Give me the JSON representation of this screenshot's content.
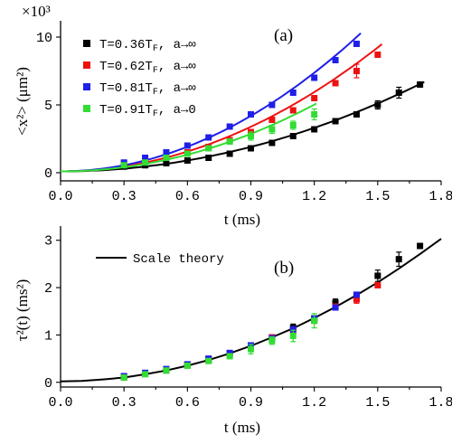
{
  "chart_data": [
    {
      "type": "scatter",
      "panel_label": "(a)",
      "xlabel": "t (ms)",
      "ylabel": "<x²> (μm²)",
      "y_multiplier": "×10³",
      "xlim": [
        0,
        1.8
      ],
      "ylim": [
        -0.6,
        11.2
      ],
      "x_ticks": [
        "0.0",
        "0.3",
        "0.6",
        "0.9",
        "1.2",
        "1.5",
        "1.8"
      ],
      "y_ticks": [
        "0",
        "5",
        "10"
      ],
      "grid": false,
      "legend_position": "top-left",
      "series": [
        {
          "name": "T=0.36T_F, a→∞",
          "name_main": "T=0.36T",
          "name_sub": "F",
          "name_tail": ",  a→∞",
          "color": "#000000",
          "x": [
            0.3,
            0.4,
            0.5,
            0.6,
            0.7,
            0.8,
            0.9,
            1.0,
            1.1,
            1.2,
            1.3,
            1.4,
            1.5,
            1.6,
            1.7
          ],
          "y": [
            0.45,
            0.55,
            0.7,
            0.9,
            1.1,
            1.4,
            1.8,
            2.2,
            2.7,
            3.2,
            3.8,
            4.3,
            5.0,
            5.9,
            6.5
          ],
          "err": [
            0,
            0,
            0,
            0,
            0,
            0,
            0,
            0,
            0,
            0,
            0,
            0,
            0.3,
            0.4,
            0
          ],
          "fit_coef": 2.25,
          "fit_xmax": 1.72
        },
        {
          "name": "T=0.62T_F, a→∞",
          "name_main": "T=0.62T",
          "name_sub": "F",
          "name_tail": ",  a→∞",
          "color": "#ee1111",
          "x": [
            0.3,
            0.4,
            0.5,
            0.6,
            0.7,
            0.8,
            0.9,
            1.0,
            1.1,
            1.2,
            1.3,
            1.4,
            1.5
          ],
          "y": [
            0.7,
            0.9,
            1.2,
            1.5,
            1.9,
            2.4,
            3.0,
            3.9,
            4.6,
            5.5,
            6.6,
            7.5,
            8.7
          ],
          "err": [
            0,
            0,
            0,
            0,
            0,
            0,
            0,
            0,
            0,
            0,
            0,
            0.5,
            0
          ],
          "fit_coef": 4.1,
          "fit_xmax": 1.52
        },
        {
          "name": "T=0.81T_F, a→∞",
          "name_main": "T=0.81T",
          "name_sub": "F",
          "name_tail": ",  a→∞",
          "color": "#1f1fe8",
          "x": [
            0.3,
            0.4,
            0.5,
            0.6,
            0.7,
            0.8,
            0.9,
            1.0,
            1.1,
            1.2,
            1.3,
            1.4
          ],
          "y": [
            0.75,
            1.1,
            1.5,
            2.0,
            2.6,
            3.4,
            4.3,
            5.0,
            5.9,
            7.0,
            8.3,
            9.5
          ],
          "err": [
            0,
            0,
            0,
            0,
            0,
            0,
            0,
            0,
            0,
            0,
            0,
            0
          ],
          "fit_coef": 5.1,
          "fit_xmax": 1.42
        },
        {
          "name": "T=0.91T_F, a→0",
          "name_main": "T=0.91T",
          "name_sub": "F",
          "name_tail": ",  a→0",
          "color": "#33dd33",
          "x": [
            0.3,
            0.4,
            0.5,
            0.6,
            0.7,
            0.8,
            0.9,
            1.0,
            1.1,
            1.2
          ],
          "y": [
            0.55,
            0.75,
            1.1,
            1.4,
            1.8,
            2.3,
            2.7,
            3.2,
            3.5,
            4.3
          ],
          "err": [
            0,
            0,
            0,
            0,
            0,
            0,
            0.3,
            0.3,
            0.3,
            0.4
          ],
          "fit_coef": 3.45,
          "fit_xmax": 1.21
        }
      ]
    },
    {
      "type": "scatter",
      "panel_label": "(b)",
      "xlabel": "t (ms)",
      "ylabel": "τ²(t) (ms²)",
      "xlim": [
        0,
        1.8
      ],
      "ylim": [
        -0.1,
        3.3
      ],
      "x_ticks": [
        "0.0",
        "0.3",
        "0.6",
        "0.9",
        "1.2",
        "1.5",
        "1.8"
      ],
      "y_ticks": [
        "0",
        "1",
        "2",
        "3"
      ],
      "grid": false,
      "legend_position": "top-left",
      "legend_line": {
        "label": "Scale theory",
        "color": "#000000"
      },
      "series": [
        {
          "color": "#000000",
          "x": [
            0.3,
            0.4,
            0.5,
            0.6,
            0.7,
            0.8,
            0.9,
            1.0,
            1.1,
            1.2,
            1.3,
            1.4,
            1.5,
            1.6,
            1.7
          ],
          "y": [
            0.1,
            0.18,
            0.25,
            0.37,
            0.48,
            0.6,
            0.75,
            0.95,
            1.15,
            1.35,
            1.68,
            1.8,
            2.25,
            2.6,
            2.88
          ],
          "err": [
            0,
            0,
            0,
            0,
            0,
            0,
            0,
            0,
            0.08,
            0,
            0.08,
            0,
            0.12,
            0.15,
            0
          ]
        },
        {
          "color": "#ee1111",
          "x": [
            0.3,
            0.4,
            0.5,
            0.6,
            0.7,
            0.8,
            0.9,
            1.0,
            1.1,
            1.2,
            1.3,
            1.4,
            1.5
          ],
          "y": [
            0.12,
            0.18,
            0.26,
            0.36,
            0.48,
            0.6,
            0.75,
            0.95,
            1.1,
            1.3,
            1.6,
            1.75,
            2.05
          ],
          "err": [
            0,
            0,
            0,
            0,
            0,
            0,
            0,
            0,
            0,
            0,
            0,
            0.08,
            0
          ]
        },
        {
          "color": "#1f1fe8",
          "x": [
            0.3,
            0.4,
            0.5,
            0.6,
            0.7,
            0.8,
            0.9,
            1.0,
            1.1,
            1.2,
            1.3,
            1.4
          ],
          "y": [
            0.13,
            0.2,
            0.28,
            0.38,
            0.5,
            0.62,
            0.78,
            0.93,
            1.12,
            1.35,
            1.58,
            1.85
          ],
          "err": [
            0,
            0,
            0,
            0,
            0,
            0,
            0,
            0,
            0,
            0,
            0,
            0
          ]
        },
        {
          "color": "#33dd33",
          "x": [
            0.3,
            0.4,
            0.5,
            0.6,
            0.7,
            0.8,
            0.9,
            1.0,
            1.1,
            1.2
          ],
          "y": [
            0.1,
            0.17,
            0.25,
            0.35,
            0.45,
            0.55,
            0.7,
            0.88,
            0.98,
            1.3
          ],
          "err": [
            0,
            0,
            0,
            0,
            0,
            0,
            0.1,
            0.08,
            0.12,
            0.15
          ]
        }
      ],
      "theory_curve": {
        "name": "Scale theory",
        "color": "#000000",
        "x": [
          0.0,
          0.1,
          0.2,
          0.3,
          0.4,
          0.5,
          0.6,
          0.7,
          0.8,
          0.9,
          1.0,
          1.1,
          1.2,
          1.3,
          1.4,
          1.5,
          1.6,
          1.7,
          1.8
        ],
        "y": [
          0.02,
          0.03,
          0.06,
          0.1,
          0.17,
          0.25,
          0.35,
          0.47,
          0.61,
          0.77,
          0.95,
          1.14,
          1.36,
          1.59,
          1.84,
          2.11,
          2.4,
          2.71,
          3.03
        ]
      }
    }
  ]
}
